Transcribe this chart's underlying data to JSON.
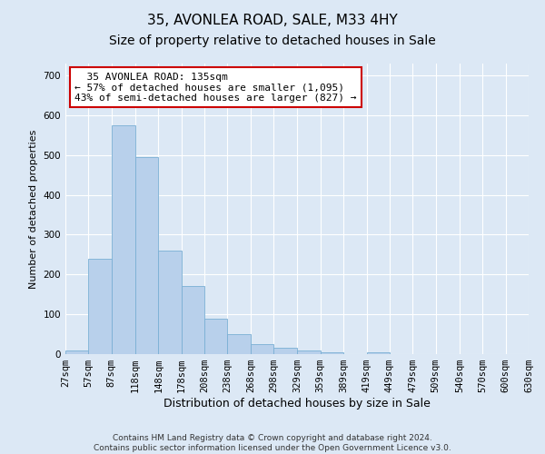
{
  "title": "35, AVONLEA ROAD, SALE, M33 4HY",
  "subtitle": "Size of property relative to detached houses in Sale",
  "xlabel": "Distribution of detached houses by size in Sale",
  "ylabel": "Number of detached properties",
  "bar_color": "#b8d0eb",
  "bar_edge_color": "#7aafd4",
  "background_color": "#dce8f5",
  "grid_color": "#ffffff",
  "annotation_box_color": "#cc0000",
  "annotation_text": "  35 AVONLEA ROAD: 135sqm\n← 57% of detached houses are smaller (1,095)\n43% of semi-detached houses are larger (827) →",
  "bin_edges": [
    27,
    57,
    87,
    118,
    148,
    178,
    208,
    238,
    268,
    298,
    329,
    359,
    389,
    419,
    449,
    479,
    509,
    540,
    570,
    600,
    630
  ],
  "bin_labels": [
    "27sqm",
    "57sqm",
    "87sqm",
    "118sqm",
    "148sqm",
    "178sqm",
    "208sqm",
    "238sqm",
    "268sqm",
    "298sqm",
    "329sqm",
    "359sqm",
    "389sqm",
    "419sqm",
    "449sqm",
    "479sqm",
    "509sqm",
    "540sqm",
    "570sqm",
    "600sqm",
    "630sqm"
  ],
  "bar_heights": [
    10,
    240,
    575,
    495,
    260,
    170,
    90,
    50,
    25,
    15,
    10,
    5,
    0,
    5,
    0,
    0,
    0,
    0,
    0,
    0
  ],
  "ylim": [
    0,
    730
  ],
  "yticks": [
    0,
    100,
    200,
    300,
    400,
    500,
    600,
    700
  ],
  "xlim": [
    27,
    630
  ],
  "footnote": "Contains HM Land Registry data © Crown copyright and database right 2024.\nContains public sector information licensed under the Open Government Licence v3.0.",
  "title_fontsize": 11,
  "subtitle_fontsize": 10,
  "xlabel_fontsize": 9,
  "ylabel_fontsize": 8,
  "tick_fontsize": 7.5,
  "annotation_fontsize": 8,
  "footnote_fontsize": 6.5
}
